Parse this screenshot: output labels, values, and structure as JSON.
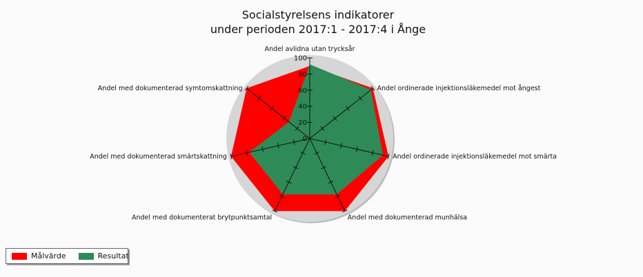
{
  "chart_data": {
    "type": "radar",
    "title": [
      "Socialstyrelsens indikatorer",
      "under perioden 2017:1 - 2017:4 i Ånge"
    ],
    "categories": [
      "Andel avlidna utan trycksår",
      "Andel ordinerade injektionsläkemedel mot ångest",
      "Andel ordinerade injektionsläkemedel mot smärta",
      "Andel med dokumenterad munhälsa",
      "Andel med dokumenterat brytpunktsamtal",
      "Andel med dokumenterad smärtskattning",
      "Andel med dokumenterad symtomskattning"
    ],
    "series": [
      {
        "name": "Målvärde",
        "color": "#ff0000",
        "values": [
          90,
          100,
          100,
          100,
          100,
          100,
          100
        ]
      },
      {
        "name": "Resultat",
        "color": "#2e8b57",
        "values": [
          92,
          97,
          93,
          77,
          77,
          77,
          33
        ]
      }
    ],
    "rlim": [
      0,
      100
    ],
    "ticks": [
      "0",
      "20",
      "40",
      "60",
      "80",
      "100"
    ],
    "tick_values": [
      0,
      20,
      40,
      60,
      80,
      100
    ],
    "legend_position": "bottom-left",
    "background_color": "#d6d6d6"
  }
}
